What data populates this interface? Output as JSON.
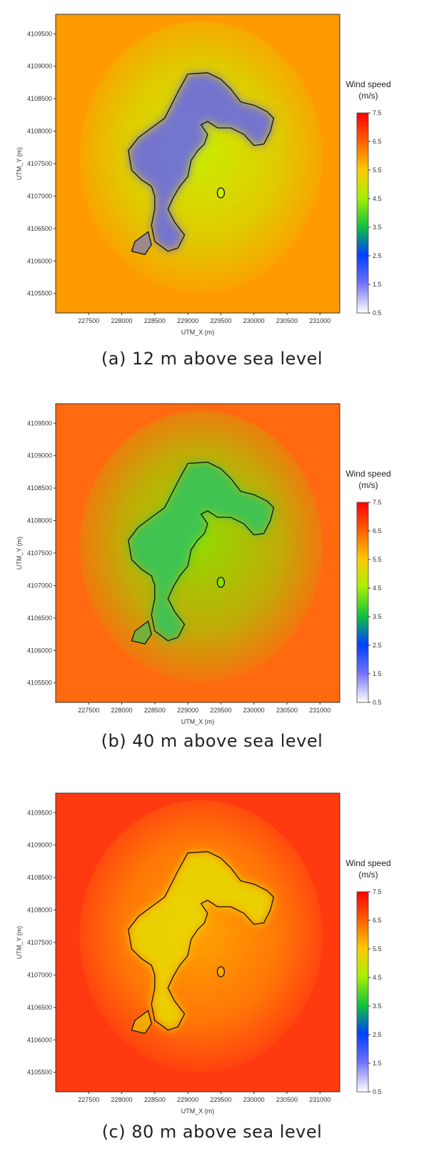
{
  "chart_data": [
    {
      "type": "heatmap",
      "caption": "(a) 12 m above sea level",
      "xlabel": "UTM_X (m)",
      "ylabel": "UTM_Y (m)",
      "x_ticks": [
        "227500",
        "228000",
        "228500",
        "229000",
        "229500",
        "230000",
        "230500",
        "231000"
      ],
      "y_ticks": [
        "4109500",
        "4109000",
        "4108500",
        "4108000",
        "4107500",
        "4107000",
        "4106500",
        "4106000",
        "4105500"
      ],
      "xlim": [
        227000,
        231300
      ],
      "ylim": [
        4105200,
        4109800
      ],
      "colorbar": {
        "title_line1": "Wind speed",
        "title_line2": "(m/s)",
        "ticks": [
          "7.5",
          "6.5",
          "5.5",
          "4.5",
          "3.5",
          "2.5",
          "1.5",
          "0.5"
        ],
        "range": [
          0.5,
          7.5
        ]
      },
      "sea_wind_speed": 5.2,
      "land_min_wind_speed": 1.2,
      "colors": {
        "sea": "#ff9a00",
        "shore": "#c8f000",
        "land": "#6a6ae6"
      }
    },
    {
      "type": "heatmap",
      "caption": "(b) 40 m above sea level",
      "xlabel": "UTM_X (m)",
      "ylabel": "UTM_Y (m)",
      "x_ticks": [
        "227500",
        "228000",
        "228500",
        "229000",
        "229500",
        "230000",
        "230500",
        "231000"
      ],
      "y_ticks": [
        "4109500",
        "4109000",
        "4108500",
        "4108000",
        "4107500",
        "4107000",
        "4106500",
        "4106000",
        "4105500"
      ],
      "xlim": [
        227000,
        231300
      ],
      "ylim": [
        4105200,
        4109800
      ],
      "colorbar": {
        "title_line1": "Wind speed",
        "title_line2": "(m/s)",
        "ticks": [
          "7.5",
          "6.5",
          "5.5",
          "4.5",
          "3.5",
          "2.5",
          "1.5",
          "0.5"
        ],
        "range": [
          0.5,
          7.5
        ]
      },
      "sea_wind_speed": 6.2,
      "land_min_wind_speed": 2.5,
      "colors": {
        "sea": "#ff6a10",
        "shore": "#8ee000",
        "land": "#34c45a"
      }
    },
    {
      "type": "heatmap",
      "caption": "(c) 80 m above sea level",
      "xlabel": "UTM_X (m)",
      "ylabel": "UTM_Y (m)",
      "x_ticks": [
        "227500",
        "228000",
        "228500",
        "229000",
        "229500",
        "230000",
        "230500",
        "231000"
      ],
      "y_ticks": [
        "4109500",
        "4109000",
        "4108500",
        "4108000",
        "4107500",
        "4107000",
        "4106500",
        "4106000",
        "4105500"
      ],
      "xlim": [
        227000,
        231300
      ],
      "ylim": [
        4105200,
        4109800
      ],
      "colorbar": {
        "title_line1": "Wind speed",
        "title_line2": "(m/s)",
        "ticks": [
          "7.5",
          "6.5",
          "5.5",
          "4.5",
          "3.5",
          "2.5",
          "1.5",
          "0.5"
        ],
        "range": [
          0.5,
          7.5
        ]
      },
      "sea_wind_speed": 6.9,
      "land_min_wind_speed": 4.8,
      "colors": {
        "sea": "#ff3a10",
        "shore": "#ffa800",
        "land": "#e8d800"
      }
    }
  ]
}
